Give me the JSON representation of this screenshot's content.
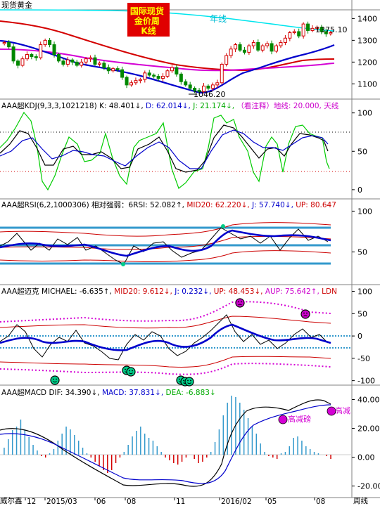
{
  "chart_data": [
    {
      "type": "candlestick",
      "instrument": "现货黄金",
      "badge": "国际现货金价周K线",
      "period_label": "周线",
      "annual_line_label": "年线",
      "high_label": "1375.10",
      "low_label": "1046.20",
      "y_ticks": [
        1100,
        1200,
        1300,
        1400
      ],
      "ylim": [
        1030,
        1440
      ],
      "closes": [
        1290,
        1270,
        1205,
        1185,
        1215,
        1235,
        1225,
        1220,
        1280,
        1300,
        1280,
        1235,
        1205,
        1190,
        1210,
        1200,
        1185,
        1200,
        1215,
        1220,
        1190,
        1195,
        1175,
        1160,
        1170,
        1165,
        1130,
        1095,
        1105,
        1115,
        1120,
        1150,
        1140,
        1135,
        1125,
        1135,
        1160,
        1175,
        1145,
        1110,
        1095,
        1080,
        1070,
        1065,
        1090,
        1080,
        1095,
        1105,
        1190,
        1230,
        1260,
        1280,
        1255,
        1245,
        1275,
        1290,
        1255,
        1275,
        1285,
        1250,
        1275,
        1290,
        1310,
        1335,
        1340,
        1320,
        1375,
        1345,
        1355,
        1360,
        1340,
        1330,
        1335
      ],
      "legend": [
        {
          "label": "年线",
          "color": "#00e5ee"
        },
        {
          "label": "MA (red)",
          "color": "#d40000"
        },
        {
          "label": "MA (magenta)",
          "color": "#d400d4"
        },
        {
          "label": "MA (blue)",
          "color": "#0000cc"
        }
      ]
    },
    {
      "type": "line",
      "header": [
        {
          "text": "AAA超KDJ(9,3,3,1021218) ",
          "color": "#000000"
        },
        {
          "text": "K: 48.401↓, ",
          "color": "#000000"
        },
        {
          "text": "D: 62.014↓, ",
          "color": "#0000cc"
        },
        {
          "text": "J: 21.174↓, ",
          "color": "#00aa00"
        },
        {
          "text": "（看注释）地线: 20.000, 天线",
          "color": "#cc00cc"
        }
      ],
      "y_ticks": [
        0,
        50,
        100
      ],
      "ylim": [
        -12,
        118
      ],
      "reference_lines": [
        20,
        80
      ],
      "series": [
        {
          "name": "K",
          "color": "#000000"
        },
        {
          "name": "D",
          "color": "#0000cc"
        },
        {
          "name": "J",
          "color": "#00cc00"
        }
      ]
    },
    {
      "type": "line",
      "header": [
        {
          "text": "AAA超RSI(6,2,1000306) 相对强弱：6RSI: 52.082↑, ",
          "color": "#000000"
        },
        {
          "text": "MID20: 62.220↓, ",
          "color": "#cc0000"
        },
        {
          "text": "J: 57.740↓, ",
          "color": "#0000cc"
        },
        {
          "text": "UP: 80.647",
          "color": "#cc0000"
        }
      ],
      "y_ticks": [
        50,
        100
      ],
      "ylim": [
        10,
        115
      ],
      "reference_lines": [
        20,
        50,
        80
      ]
    },
    {
      "type": "line",
      "header": [
        {
          "text": "AAA超迈克  MICHAEL: -6.635↑, ",
          "color": "#000000"
        },
        {
          "text": "MID20: 9.612↓, ",
          "color": "#cc0000"
        },
        {
          "text": "J: 0.232↓, ",
          "color": "#0000cc"
        },
        {
          "text": "UP: 48.453↓, ",
          "color": "#cc0000"
        },
        {
          "text": "AUP: 75.642↑, ",
          "color": "#cc00cc"
        },
        {
          "text": "LDN",
          "color": "#cc0000"
        }
      ],
      "y_ticks": [
        -100,
        -50,
        0,
        50,
        100
      ],
      "ylim": [
        -110,
        115
      ]
    },
    {
      "type": "bar",
      "header": [
        {
          "text": "AAA超MACD  DIF: 34.390↓, ",
          "color": "#000000"
        },
        {
          "text": "MACD: 37.831↓, ",
          "color": "#0000cc"
        },
        {
          "text": "DEA: -6.883↓",
          "color": "#00aa00"
        }
      ],
      "y_ticks": [
        "40.00",
        "20.00",
        "0.00",
        "-20.00"
      ],
      "ylim": [
        -28,
        50
      ],
      "annotations": [
        "高减磅",
        "高减"
      ],
      "x_ticks": [
        "12",
        "2015/03",
        "06",
        "08",
        "11",
        "2016/02",
        "05",
        "08"
      ]
    }
  ],
  "footer": {
    "left_label": "威尔鑫",
    "right_label": "周线"
  }
}
